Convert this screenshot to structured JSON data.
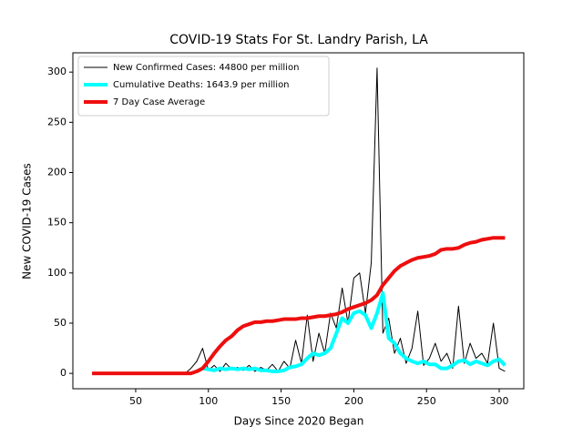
{
  "chart_data": {
    "type": "line",
    "title": "COVID-19 Stats For St. Landry Parish, LA",
    "x_label": "Days Since 2020 Began",
    "y_label": "New COVID-19 Cases",
    "x": [
      20,
      24,
      28,
      32,
      36,
      40,
      44,
      48,
      52,
      56,
      60,
      64,
      68,
      72,
      76,
      80,
      84,
      88,
      92,
      96,
      100,
      104,
      108,
      112,
      116,
      120,
      124,
      128,
      132,
      136,
      140,
      144,
      148,
      152,
      156,
      160,
      164,
      168,
      172,
      176,
      180,
      184,
      188,
      192,
      196,
      200,
      204,
      208,
      212,
      216,
      220,
      224,
      228,
      232,
      236,
      240,
      244,
      248,
      252,
      256,
      260,
      264,
      268,
      272,
      276,
      280,
      284,
      288,
      292,
      296,
      300,
      304
    ],
    "series": [
      {
        "name": "New Confirmed Cases: 44800 per million",
        "color": "#000000",
        "width": 1,
        "values": [
          0,
          0,
          0,
          0,
          0,
          0,
          0,
          0,
          0,
          0,
          0,
          0,
          0,
          0,
          0,
          0,
          0,
          5,
          12,
          25,
          3,
          8,
          2,
          10,
          4,
          6,
          3,
          8,
          2,
          6,
          3,
          9,
          2,
          12,
          5,
          33,
          10,
          58,
          12,
          40,
          20,
          60,
          45,
          85,
          50,
          95,
          100,
          60,
          110,
          304,
          40,
          55,
          20,
          35,
          10,
          25,
          62,
          8,
          15,
          30,
          12,
          20,
          5,
          67,
          10,
          30,
          15,
          20,
          10,
          50,
          5,
          2
        ]
      },
      {
        "name": "Cumulative Deaths: 1643.9 per million",
        "color": "#00ffff",
        "width": 4,
        "values": [
          null,
          null,
          null,
          null,
          null,
          null,
          null,
          null,
          null,
          null,
          null,
          null,
          null,
          null,
          null,
          null,
          null,
          null,
          2,
          5,
          4,
          3,
          5,
          4,
          5,
          4,
          5,
          4,
          5,
          3,
          3,
          2,
          2,
          3,
          6,
          7,
          9,
          15,
          20,
          18,
          20,
          25,
          40,
          55,
          50,
          60,
          62,
          58,
          45,
          60,
          80,
          35,
          30,
          20,
          15,
          12,
          10,
          12,
          9,
          9,
          5,
          5,
          8,
          12,
          13,
          9,
          12,
          10,
          8,
          12,
          14,
          8
        ]
      },
      {
        "name": "7 Day Case Average",
        "color": "#ee0e0e",
        "width": 4,
        "values": [
          0,
          0,
          0,
          0,
          0,
          0,
          0,
          0,
          0,
          0,
          0,
          0,
          0,
          0,
          0,
          0,
          0,
          0,
          2,
          5,
          12,
          20,
          27,
          33,
          37,
          43,
          47,
          49,
          51,
          51,
          52,
          52,
          53,
          54,
          54,
          54,
          55,
          55,
          56,
          57,
          57,
          58,
          59,
          61,
          64,
          66,
          68,
          70,
          73,
          78,
          88,
          95,
          102,
          107,
          110,
          113,
          115,
          116,
          117,
          119,
          123,
          124,
          124,
          125,
          128,
          130,
          131,
          133,
          134,
          135,
          135,
          135
        ]
      }
    ],
    "xlim": [
      6.8,
      316.9
    ],
    "ylim": [
      -15.3,
      319.2
    ],
    "xticks": [
      50,
      100,
      150,
      200,
      250,
      300
    ],
    "yticks": [
      0,
      50,
      100,
      150,
      200,
      250,
      300
    ],
    "legend": "upper left"
  }
}
